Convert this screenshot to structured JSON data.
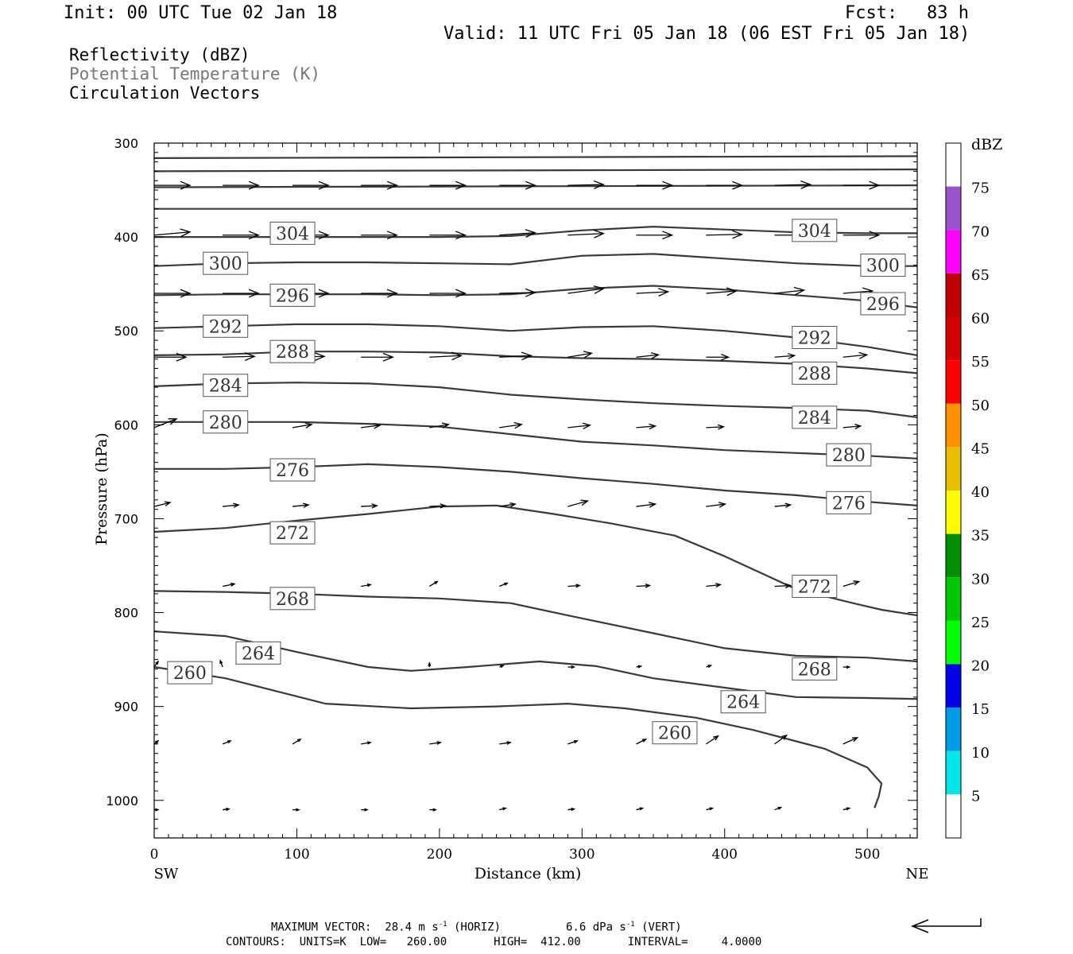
{
  "header": {
    "init": "Init: 00 UTC Tue 02 Jan 18",
    "fcst_label": "Fcst:",
    "fcst_value": "83 h",
    "valid": "Valid: 11 UTC Fri 05 Jan 18 (06 EST Fri 05 Jan 18)"
  },
  "fields": {
    "f1": "Reflectivity (dBZ)",
    "f2": "Potential Temperature (K)",
    "f3": "Circulation Vectors"
  },
  "colors": {
    "f2_text": "#777777",
    "contour": "#3a3a3a"
  },
  "footer": {
    "line1_a": "MAXIMUM VECTOR:  28.4 m s",
    "line1_sup1": "-1",
    "line1_b": " (HORIZ)",
    "line1_c": "6.6 dPa s",
    "line1_sup2": "-1",
    "line1_d": " (VERT)",
    "line2": "CONTOURS:  UNITS=K  LOW=   260.00       HIGH=  412.00       INTERVAL=     4.0000"
  },
  "chart_data": {
    "type": "line",
    "xlabel": "Distance (km)",
    "ylabel": "Pressure (hPa)",
    "xlim": [
      0,
      535
    ],
    "ylim": [
      1040,
      300
    ],
    "x_ticks": [
      0,
      100,
      200,
      300,
      400,
      500
    ],
    "y_ticks": [
      300,
      400,
      500,
      600,
      700,
      800,
      900,
      1000
    ],
    "x_end_labels": {
      "left": "SW",
      "right": "NE"
    },
    "colorbar": {
      "title": "dBZ",
      "labels": [
        "5",
        "10",
        "15",
        "20",
        "25",
        "30",
        "35",
        "40",
        "45",
        "50",
        "55",
        "60",
        "65",
        "70",
        "75"
      ],
      "colors": [
        "#ffffff",
        "#00e5e5",
        "#0099e6",
        "#0000e6",
        "#00ff00",
        "#00c800",
        "#009000",
        "#ffff00",
        "#e6bf00",
        "#ff9000",
        "#ff0000",
        "#d60000",
        "#c00000",
        "#ff00ff",
        "#9955c9",
        "#ffffff"
      ]
    },
    "contours": [
      {
        "label": "260",
        "x": [
          0,
          50,
          120,
          180,
          240,
          290,
          330,
          380,
          420,
          470,
          500,
          510,
          508,
          505
        ],
        "y": [
          858,
          870,
          897,
          902,
          900,
          897,
          902,
          912,
          925,
          945,
          965,
          982,
          996,
          1008
        ],
        "label_at": [
          [
            25,
            864
          ],
          [
            365,
            928
          ]
        ]
      },
      {
        "label": "264",
        "x": [
          0,
          50,
          100,
          150,
          180,
          220,
          270,
          310,
          350,
          400,
          450,
          500,
          535
        ],
        "y": [
          820,
          825,
          842,
          858,
          862,
          858,
          852,
          857,
          870,
          880,
          890,
          891,
          892
        ],
        "label_at": [
          [
            73,
            843
          ],
          [
            413,
            895
          ]
        ]
      },
      {
        "label": "268",
        "x": [
          0,
          50,
          100,
          150,
          200,
          250,
          290,
          350,
          400,
          450,
          500,
          535
        ],
        "y": [
          777,
          778,
          780,
          783,
          785,
          790,
          803,
          822,
          838,
          846,
          848,
          852
        ],
        "label_at": [
          [
            97,
            785
          ],
          [
            463,
            860
          ]
        ]
      },
      {
        "label": "272",
        "x": [
          0,
          50,
          100,
          150,
          200,
          240,
          280,
          320,
          365,
          400,
          450,
          490,
          510,
          535
        ],
        "y": [
          714,
          710,
          702,
          695,
          687,
          686,
          695,
          705,
          718,
          740,
          775,
          790,
          797,
          803
        ],
        "label_at": [
          [
            97,
            715
          ],
          [
            463,
            772
          ]
        ]
      },
      {
        "label": "276",
        "x": [
          0,
          50,
          100,
          150,
          200,
          250,
          300,
          350,
          400,
          450,
          500,
          535
        ],
        "y": [
          647,
          647,
          645,
          642,
          645,
          650,
          657,
          663,
          670,
          675,
          682,
          686
        ],
        "label_at": [
          [
            97,
            648
          ],
          [
            487,
            683
          ]
        ]
      },
      {
        "label": "280",
        "x": [
          0,
          50,
          100,
          150,
          200,
          250,
          300,
          350,
          400,
          450,
          500,
          535
        ],
        "y": [
          597,
          597,
          597,
          599,
          602,
          610,
          618,
          622,
          627,
          630,
          633,
          636
        ],
        "label_at": [
          [
            50,
            597
          ],
          [
            487,
            632
          ]
        ]
      },
      {
        "label": "284",
        "x": [
          0,
          50,
          100,
          150,
          200,
          250,
          300,
          350,
          400,
          450,
          500,
          535
        ],
        "y": [
          559,
          556,
          555,
          556,
          560,
          568,
          573,
          577,
          580,
          582,
          585,
          592
        ],
        "label_at": [
          [
            50,
            558
          ],
          [
            463,
            592
          ]
        ]
      },
      {
        "label": "288",
        "x": [
          0,
          50,
          100,
          150,
          200,
          250,
          300,
          350,
          400,
          450,
          500,
          535
        ],
        "y": [
          526,
          525,
          522,
          522,
          523,
          527,
          529,
          530,
          532,
          535,
          540,
          545
        ],
        "label_at": [
          [
            97,
            522
          ],
          [
            463,
            545
          ]
        ]
      },
      {
        "label": "292",
        "x": [
          0,
          50,
          100,
          150,
          200,
          250,
          300,
          350,
          400,
          450,
          500,
          535
        ],
        "y": [
          497,
          495,
          493,
          493,
          495,
          500,
          496,
          495,
          500,
          507,
          517,
          526
        ],
        "label_at": [
          [
            50,
            495
          ],
          [
            463,
            507
          ]
        ]
      },
      {
        "label": "296",
        "x": [
          0,
          50,
          100,
          150,
          200,
          250,
          300,
          350,
          400,
          450,
          500,
          535
        ],
        "y": [
          462,
          461,
          461,
          461,
          462,
          461,
          455,
          452,
          456,
          462,
          468,
          475
        ],
        "label_at": [
          [
            97,
            462
          ],
          [
            511,
            471
          ]
        ]
      },
      {
        "label": "300",
        "x": [
          0,
          50,
          100,
          150,
          200,
          250,
          300,
          350,
          400,
          450,
          500,
          535
        ],
        "y": [
          431,
          428,
          427,
          427,
          428,
          429,
          420,
          418,
          423,
          428,
          431,
          431
        ],
        "label_at": [
          [
            50,
            428
          ],
          [
            511,
            430
          ]
        ]
      },
      {
        "label": "304",
        "x": [
          0,
          50,
          100,
          150,
          200,
          250,
          300,
          350,
          400,
          450,
          500,
          535
        ],
        "y": [
          400,
          400,
          400,
          400,
          400,
          399,
          393,
          389,
          392,
          395,
          396,
          396
        ],
        "label_at": [
          [
            97,
            396
          ],
          [
            463,
            393
          ]
        ]
      },
      {
        "label": "",
        "x": [
          0,
          535
        ],
        "y": [
          370,
          370
        ]
      },
      {
        "label": "",
        "x": [
          0,
          535
        ],
        "y": [
          347,
          345
        ]
      },
      {
        "label": "",
        "x": [
          0,
          535
        ],
        "y": [
          330,
          328
        ]
      },
      {
        "label": "",
        "x": [
          0,
          535
        ],
        "y": [
          316,
          314
        ]
      }
    ],
    "vectors": {
      "x": [
        0,
        48,
        97,
        145,
        193,
        242,
        290,
        338,
        387,
        435,
        483
      ],
      "rows": [
        {
          "p": 345,
          "u": [
            45,
            45,
            45,
            45,
            45,
            45,
            45,
            45,
            45,
            45,
            45
          ],
          "v": [
            0,
            0,
            0,
            0,
            0,
            0,
            -1,
            0,
            0,
            -1,
            0
          ]
        },
        {
          "p": 398,
          "u": [
            45,
            45,
            45,
            45,
            45,
            45,
            45,
            45,
            45,
            45,
            45
          ],
          "v": [
            -4,
            0,
            0,
            0,
            0,
            -3,
            -2,
            0,
            -1,
            0,
            0
          ]
        },
        {
          "p": 460,
          "u": [
            45,
            45,
            45,
            45,
            45,
            45,
            45,
            40,
            38,
            37,
            37
          ],
          "v": [
            0,
            0,
            0,
            0,
            0,
            -1,
            -6,
            -2,
            -3,
            -4,
            -3
          ]
        },
        {
          "p": 528,
          "u": [
            40,
            40,
            40,
            40,
            40,
            40,
            30,
            28,
            28,
            25,
            30
          ],
          "v": [
            0,
            -1,
            -1,
            0,
            -2,
            -2,
            -5,
            -3,
            0,
            -2,
            -3
          ]
        },
        {
          "p": 603,
          "u": [
            28,
            24,
            24,
            24,
            24,
            28,
            28,
            24,
            22,
            0,
            22
          ],
          "v": [
            -11,
            -5,
            -4,
            -3,
            -4,
            -4,
            -3,
            -2,
            -1,
            0,
            -2
          ]
        },
        {
          "p": 687,
          "u": [
            20,
            20,
            20,
            20,
            20,
            20,
            25,
            24,
            24,
            20,
            15
          ],
          "v": [
            -5,
            -2,
            -2,
            -1,
            -1,
            -3,
            -7,
            -3,
            -3,
            -2,
            -3
          ]
        },
        {
          "p": 772,
          "u": [
            0,
            15,
            0,
            12,
            10,
            10,
            15,
            17,
            18,
            20,
            20
          ],
          "v": [
            0,
            -3,
            0,
            -2,
            -6,
            -4,
            -1,
            -1,
            -2,
            -1,
            -6
          ]
        },
        {
          "p": 858,
          "u": [
            5,
            -3,
            0,
            0,
            0,
            5,
            8,
            6,
            6,
            0,
            8
          ],
          "v": [
            -7,
            -8,
            0,
            0,
            -5,
            -2,
            0,
            -1,
            -2,
            0,
            0
          ]
        },
        {
          "p": 940,
          "u": [
            5,
            10,
            10,
            12,
            14,
            14,
            12,
            12,
            15,
            15,
            18
          ],
          "v": [
            -4,
            -4,
            -6,
            -2,
            -2,
            -2,
            -4,
            -6,
            -10,
            -11,
            -8
          ]
        },
        {
          "p": 1010,
          "u": [
            5,
            8,
            8,
            8,
            8,
            8,
            8,
            8,
            8,
            8,
            8
          ],
          "v": [
            0,
            -1,
            0,
            0,
            0,
            -2,
            -1,
            -2,
            -2,
            -3,
            -2
          ]
        }
      ]
    },
    "reference_vector": {
      "horizontal": 28.4,
      "vertical": 6.6
    }
  }
}
